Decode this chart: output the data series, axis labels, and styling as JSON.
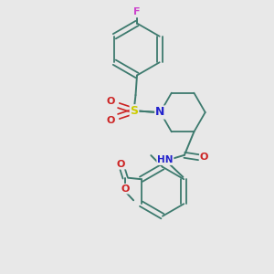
{
  "background_color": "#e8e8e8",
  "bond_color": "#3d7a6e",
  "atom_colors": {
    "F": "#cc44cc",
    "S": "#cccc00",
    "N": "#2222cc",
    "O": "#cc2222",
    "H": "#888888",
    "C": "#3d7a6e"
  },
  "figsize": [
    3.0,
    3.0
  ],
  "dpi": 100
}
